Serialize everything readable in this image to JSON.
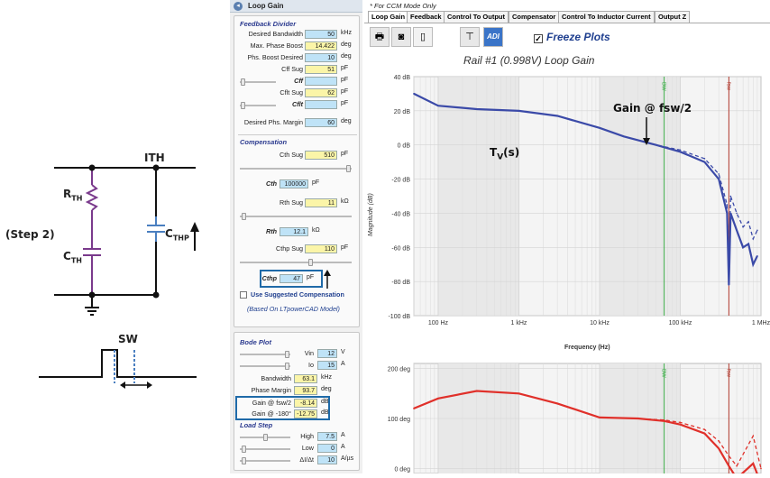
{
  "schematic": {
    "step_label": "(Step 2)",
    "ith_label": "ITH",
    "rth": "TH",
    "cth": "TH",
    "cthp": "THP",
    "sw_label": "SW"
  },
  "panel": {
    "title": "Loop Gain",
    "feedback_divider": {
      "heading": "Feedback Divider",
      "rows": [
        {
          "label": "Desired Bandwidth",
          "value": "50",
          "unit": "kHz"
        },
        {
          "label": "Max. Phase Boost",
          "value": "14.422",
          "unit": "deg"
        },
        {
          "label": "Phs. Boost Desired",
          "value": "10",
          "unit": "deg"
        },
        {
          "label": "Cff Sug",
          "value": "51",
          "unit": "pF"
        },
        {
          "label": "Cff",
          "value": "",
          "unit": "pF"
        },
        {
          "label": "Cflt Sug",
          "value": "62",
          "unit": "pF"
        },
        {
          "label": "Cflt",
          "value": "",
          "unit": "pF"
        },
        {
          "label": "Desired Phs. Margin",
          "value": "60",
          "unit": "deg"
        }
      ]
    },
    "compensation": {
      "heading": "Compensation",
      "cth_sug": {
        "label": "Cth Sug",
        "value": "510",
        "unit": "pF"
      },
      "cth": {
        "label": "Cth",
        "value": "100000",
        "unit": "pF"
      },
      "rth_sug": {
        "label": "Rth Sug",
        "value": "11",
        "unit": "kΩ"
      },
      "rth": {
        "label": "Rth",
        "value": "12.1",
        "unit": "kΩ"
      },
      "cthp_sug": {
        "label": "Cthp Sug",
        "value": "110",
        "unit": "pF"
      },
      "cthp": {
        "label": "Cthp",
        "value": "47",
        "unit": "pF"
      },
      "use_suggested": "Use Suggested Compensation",
      "based_on": "(Based On LTpowerCAD Model)"
    },
    "bode_plot": {
      "heading": "Bode Plot",
      "vin": {
        "label": "Vin",
        "value": "12",
        "unit": "V"
      },
      "io": {
        "label": "Io",
        "value": "15",
        "unit": "A"
      },
      "bandwidth": {
        "label": "Bandwidth",
        "value": "63.1",
        "unit": "kHz"
      },
      "phase_margin": {
        "label": "Phase Margin",
        "value": "93.7",
        "unit": "deg"
      },
      "gain_fsw2": {
        "label": "Gain @ fsw/2",
        "value": "-8.14",
        "unit": "dB"
      },
      "gain_180": {
        "label": "Gain @ -180°",
        "value": "-12.75",
        "unit": "dB"
      }
    },
    "load_step": {
      "heading": "Load Step",
      "high": {
        "label": "High",
        "value": "7.5",
        "unit": "A"
      },
      "low": {
        "label": "Low",
        "value": "0",
        "unit": "A"
      },
      "slew": {
        "label": "ΔI/Δt",
        "value": "10",
        "unit": "A/µs"
      }
    }
  },
  "right": {
    "ccm_note": "* For CCM Mode Only",
    "tabs": [
      "Loop Gain",
      "Feedback",
      "Control To Output",
      "Compensator",
      "Control To Inductor Current",
      "Output Z"
    ],
    "freeze_label": "Freeze Plots",
    "adi_label": "ADI",
    "chart_title": "Rail #1 (0.998V) Loop Gain",
    "annotation_gain": "Gain @ fsw/2",
    "annotation_tv": "T",
    "annotation_tv_sub": "V",
    "annotation_tv_tail": "(s)"
  },
  "chart_data": [
    {
      "type": "line",
      "title": "Rail #1 (0.998V) Loop Gain",
      "xlabel": "Frequency (Hz)",
      "ylabel": "Magnitude (dB)",
      "xscale": "log",
      "xlim": [
        50,
        1000000
      ],
      "ylim": [
        -100,
        40
      ],
      "xticks": [
        "100 Hz",
        "1 kHz",
        "10 kHz",
        "100 kHz",
        "1 MHz"
      ],
      "yticks": [
        "40 dB",
        "20 dB",
        "0 dB",
        "-20 dB",
        "-40 dB",
        "-60 dB",
        "-80 dB",
        "-100 dB"
      ],
      "markers": [
        {
          "label": "BW",
          "x": 63100
        },
        {
          "label": "fsw",
          "x": 400000
        }
      ],
      "series": [
        {
          "style": "solid",
          "x": [
            50,
            100,
            300,
            1000,
            3000,
            10000,
            20000,
            50000,
            100000,
            200000,
            300000,
            380000,
            400000,
            420000,
            500000,
            600000,
            700000,
            800000,
            900000
          ],
          "y": [
            30,
            23,
            21,
            20,
            17,
            10,
            5,
            0,
            -4,
            -10,
            -20,
            -40,
            -82,
            -40,
            -50,
            -60,
            -58,
            -70,
            -65
          ]
        },
        {
          "style": "dashed",
          "x": [
            50,
            100,
            300,
            1000,
            3000,
            10000,
            20000,
            50000,
            100000,
            200000,
            300000,
            380000,
            400000,
            420000,
            500000,
            600000,
            700000,
            800000,
            900000
          ],
          "y": [
            30,
            23,
            21,
            20,
            17,
            10,
            5,
            0,
            -3,
            -8,
            -17,
            -35,
            -75,
            -30,
            -40,
            -48,
            -45,
            -55,
            -50
          ]
        }
      ]
    },
    {
      "type": "line",
      "xscale": "log",
      "xlim": [
        50,
        1000000
      ],
      "ylim": [
        -10,
        210
      ],
      "yticks": [
        "200 deg",
        "100 deg",
        "0 deg"
      ],
      "markers": [
        {
          "label": "BW",
          "x": 63100
        },
        {
          "label": "fsw",
          "x": 400000
        }
      ],
      "series": [
        {
          "style": "solid",
          "x": [
            50,
            100,
            300,
            1000,
            3000,
            10000,
            30000,
            63100,
            100000,
            200000,
            300000,
            400000,
            500000,
            800000,
            1000000
          ],
          "y": [
            120,
            140,
            155,
            150,
            130,
            102,
            100,
            95,
            88,
            70,
            40,
            5,
            -20,
            10,
            -30
          ]
        },
        {
          "style": "dashed",
          "x": [
            50,
            100,
            300,
            1000,
            3000,
            10000,
            30000,
            63100,
            100000,
            200000,
            300000,
            400000,
            500000,
            800000,
            1000000
          ],
          "y": [
            120,
            140,
            155,
            150,
            130,
            102,
            100,
            97,
            92,
            78,
            55,
            25,
            5,
            65,
            0
          ]
        }
      ]
    }
  ]
}
